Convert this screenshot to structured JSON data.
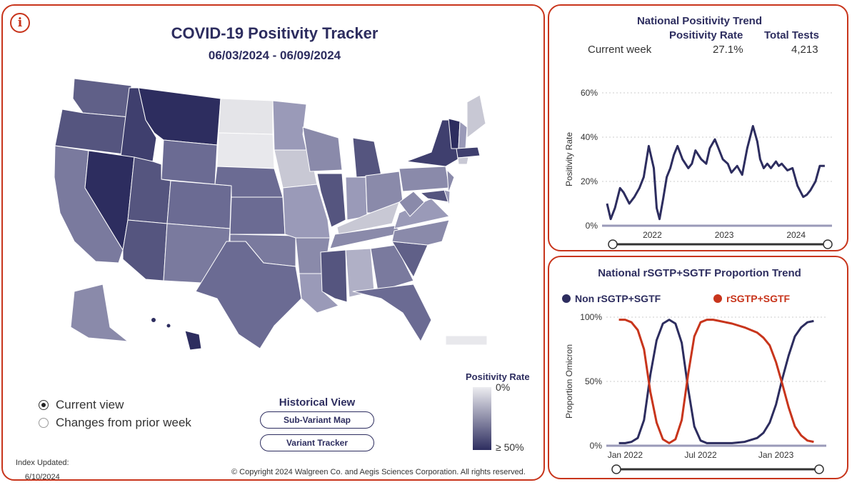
{
  "map_panel": {
    "info_icon": "info-icon",
    "title": "COVID-19 Positivity Tracker",
    "date_range": "06/03/2024 - 06/09/2024",
    "view_options": [
      {
        "label": "Current view",
        "selected": true
      },
      {
        "label": "Changes from prior week",
        "selected": false
      }
    ],
    "historical_view": {
      "title": "Historical View",
      "buttons": [
        "Sub-Variant Map",
        "Variant Tracker"
      ]
    },
    "legend": {
      "title": "Positivity Rate",
      "min_label": "0%",
      "max_label": "≥ 50%",
      "colors": [
        "#ececf0",
        "#2d2d5f"
      ]
    },
    "index_updated": {
      "label": "Index Updated:",
      "date": "6/10/2024"
    },
    "copyright": "© Copyright 2024 Walgreen Co. and Aegis Sciences Corporation. All rights reserved."
  },
  "trend_panel": {
    "title": "National Positivity Trend",
    "columns": [
      "Positivity Rate",
      "Total Tests"
    ],
    "row_label": "Current week",
    "positivity_rate": "27.1%",
    "total_tests": "4,213"
  },
  "proportion_panel": {
    "title": "National rSGTP+SGTF Proportion Trend",
    "legend": [
      {
        "label": "Non rSGTP+SGTF",
        "color": "#2d2d5f"
      },
      {
        "label": "rSGTP+SGTF",
        "color": "#c8351c"
      }
    ]
  },
  "chart_data": [
    {
      "type": "line",
      "title": "National Positivity Trend",
      "ylabel": "Positivity Rate",
      "xlabel": "",
      "ylim": [
        0,
        60
      ],
      "yticks": [
        "0%",
        "20%",
        "40%",
        "60%"
      ],
      "xticks": [
        "2022",
        "2023",
        "2024"
      ],
      "xlim": [
        2021.3,
        2024.5
      ],
      "series": [
        {
          "name": "Positivity Rate",
          "color": "#2d2d5f",
          "x": [
            2021.37,
            2021.42,
            2021.48,
            2021.55,
            2021.6,
            2021.68,
            2021.75,
            2021.82,
            2021.88,
            2021.95,
            2022.02,
            2022.06,
            2022.1,
            2022.15,
            2022.2,
            2022.25,
            2022.3,
            2022.35,
            2022.42,
            2022.5,
            2022.55,
            2022.6,
            2022.68,
            2022.75,
            2022.8,
            2022.87,
            2022.92,
            2022.98,
            2023.05,
            2023.1,
            2023.18,
            2023.25,
            2023.32,
            2023.4,
            2023.46,
            2023.5,
            2023.55,
            2023.6,
            2023.65,
            2023.72,
            2023.76,
            2023.8,
            2023.88,
            2023.95,
            2024.02,
            2024.1,
            2024.15,
            2024.2,
            2024.27,
            2024.33,
            2024.4
          ],
          "y": [
            10,
            3,
            8,
            17,
            15,
            10,
            13,
            17,
            22,
            36,
            26,
            8,
            3,
            12,
            22,
            26,
            32,
            36,
            30,
            26,
            28,
            34,
            30,
            28,
            35,
            39,
            35,
            30,
            28,
            24,
            27,
            23,
            35,
            45,
            38,
            30,
            26,
            28,
            26,
            29,
            27,
            28,
            25,
            26,
            18,
            13,
            14,
            16,
            20,
            27,
            27
          ]
        }
      ]
    },
    {
      "type": "line",
      "title": "National rSGTP+SGTF Proportion Trend",
      "ylabel": "Proportion Omicron",
      "xlabel": "",
      "ylim": [
        0,
        100
      ],
      "yticks": [
        "0%",
        "50%",
        "100%"
      ],
      "xticks": [
        "Jan 2022",
        "Jul 2022",
        "Jan 2023"
      ],
      "xlim": [
        0,
        17.5
      ],
      "series": [
        {
          "name": "Non rSGTP+SGTF",
          "color": "#2d2d5f",
          "x": [
            1.0,
            1.5,
            2.0,
            2.5,
            3.0,
            3.5,
            4.0,
            4.5,
            5.0,
            5.5,
            6.0,
            6.5,
            7.0,
            7.5,
            8.0,
            8.5,
            9.0,
            10.0,
            11.0,
            12.0,
            12.5,
            13.0,
            13.5,
            14.0,
            14.5,
            15.0,
            15.5,
            16.0,
            16.5
          ],
          "y": [
            2,
            2,
            3,
            6,
            20,
            55,
            82,
            95,
            98,
            95,
            80,
            45,
            15,
            4,
            2,
            2,
            2,
            2,
            3,
            6,
            10,
            18,
            32,
            52,
            70,
            85,
            92,
            96,
            97
          ]
        },
        {
          "name": "rSGTP+SGTF",
          "color": "#c8351c",
          "x": [
            1.0,
            1.5,
            2.0,
            2.5,
            3.0,
            3.5,
            4.0,
            4.5,
            5.0,
            5.5,
            6.0,
            6.5,
            7.0,
            7.5,
            8.0,
            8.5,
            9.0,
            10.0,
            11.0,
            12.0,
            12.5,
            13.0,
            13.5,
            14.0,
            14.5,
            15.0,
            15.5,
            16.0,
            16.5
          ],
          "y": [
            98,
            98,
            96,
            90,
            75,
            42,
            18,
            5,
            2,
            5,
            20,
            55,
            85,
            96,
            98,
            98,
            97,
            95,
            92,
            88,
            84,
            78,
            65,
            48,
            30,
            15,
            8,
            4,
            3
          ]
        }
      ]
    }
  ]
}
